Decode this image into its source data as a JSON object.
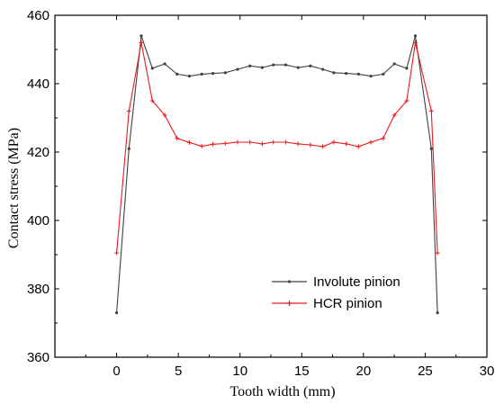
{
  "chart_data": {
    "type": "line",
    "xlabel": "Tooth width (mm)",
    "ylabel": "Contact stress (MPa)",
    "xlim": [
      -5,
      30
    ],
    "ylim": [
      360,
      460
    ],
    "xticks": [
      0,
      5,
      10,
      15,
      20,
      25,
      30
    ],
    "yticks": [
      360,
      380,
      400,
      420,
      440,
      460
    ],
    "grid": false,
    "legend_position": "bottom-right",
    "series": [
      {
        "name": "Involute pinion",
        "color": "#404040",
        "marker": "dot",
        "x": [
          0,
          1,
          2,
          2.9,
          3.9,
          4.9,
          5.9,
          6.9,
          7.8,
          8.8,
          9.8,
          10.8,
          11.8,
          12.7,
          13.7,
          14.7,
          15.7,
          16.7,
          17.6,
          18.6,
          19.6,
          20.6,
          21.6,
          22.5,
          23.5,
          24.2,
          25.5,
          26
        ],
        "y": [
          373,
          421,
          454,
          444.5,
          445.8,
          442.8,
          442.2,
          442.8,
          443,
          443.2,
          444.2,
          445.2,
          444.7,
          445.5,
          445.5,
          444.7,
          445.2,
          444.2,
          443.2,
          443,
          442.8,
          442.2,
          442.8,
          445.8,
          444.5,
          454,
          421,
          373
        ]
      },
      {
        "name": "HCR pinion",
        "color": "#e8191c",
        "marker": "plus",
        "x": [
          0,
          1,
          2,
          2.9,
          3.9,
          4.9,
          5.9,
          6.9,
          7.8,
          8.8,
          9.8,
          10.8,
          11.8,
          12.7,
          13.7,
          14.7,
          15.7,
          16.7,
          17.6,
          18.6,
          19.6,
          20.6,
          21.6,
          22.5,
          23.5,
          24.2,
          25.5,
          26
        ],
        "y": [
          390.5,
          432,
          452,
          435,
          430.8,
          424,
          422.8,
          421.7,
          422.3,
          422.5,
          422.9,
          422.9,
          422.4,
          422.9,
          422.9,
          422.4,
          422.1,
          421.6,
          422.9,
          422.4,
          421.6,
          422.9,
          424,
          430.8,
          435,
          452,
          432,
          390.5
        ]
      }
    ]
  }
}
